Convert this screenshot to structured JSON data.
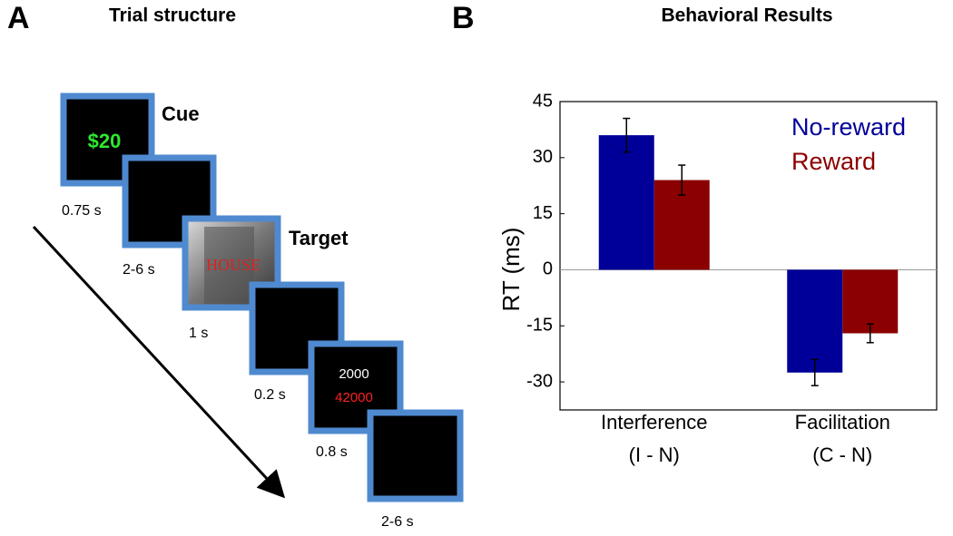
{
  "panel_a": {
    "label": "A",
    "title": "Trial structure",
    "cue_label": "Cue",
    "cue_text": "$20",
    "target_label": "Target",
    "target_word": "HOUSE",
    "feedback_top": "2000",
    "feedback_bottom": "42000",
    "durations": [
      "0.75 s",
      "2-6 s",
      "1 s",
      "0.2 s",
      "0.8 s",
      "2-6 s"
    ]
  },
  "chart_data": {
    "type": "bar",
    "label": "B",
    "title": "Behavioral Results",
    "y_label": "RT (ms)",
    "categories": [
      "Interference",
      "Facilitation"
    ],
    "category_sublabels": [
      "(I - N)",
      "(C - N)"
    ],
    "series": [
      {
        "name": "No-reward",
        "color": "#000099",
        "values": [
          36,
          -27.5
        ],
        "errors": [
          4.5,
          3.5
        ]
      },
      {
        "name": "Reward",
        "color": "#8b0000",
        "values": [
          24,
          -17
        ],
        "errors": [
          4,
          2.5
        ]
      }
    ],
    "ylim": [
      -37.5,
      45
    ],
    "yticks": [
      -30,
      -15,
      0,
      15,
      30,
      45
    ],
    "legend": "upper right"
  }
}
